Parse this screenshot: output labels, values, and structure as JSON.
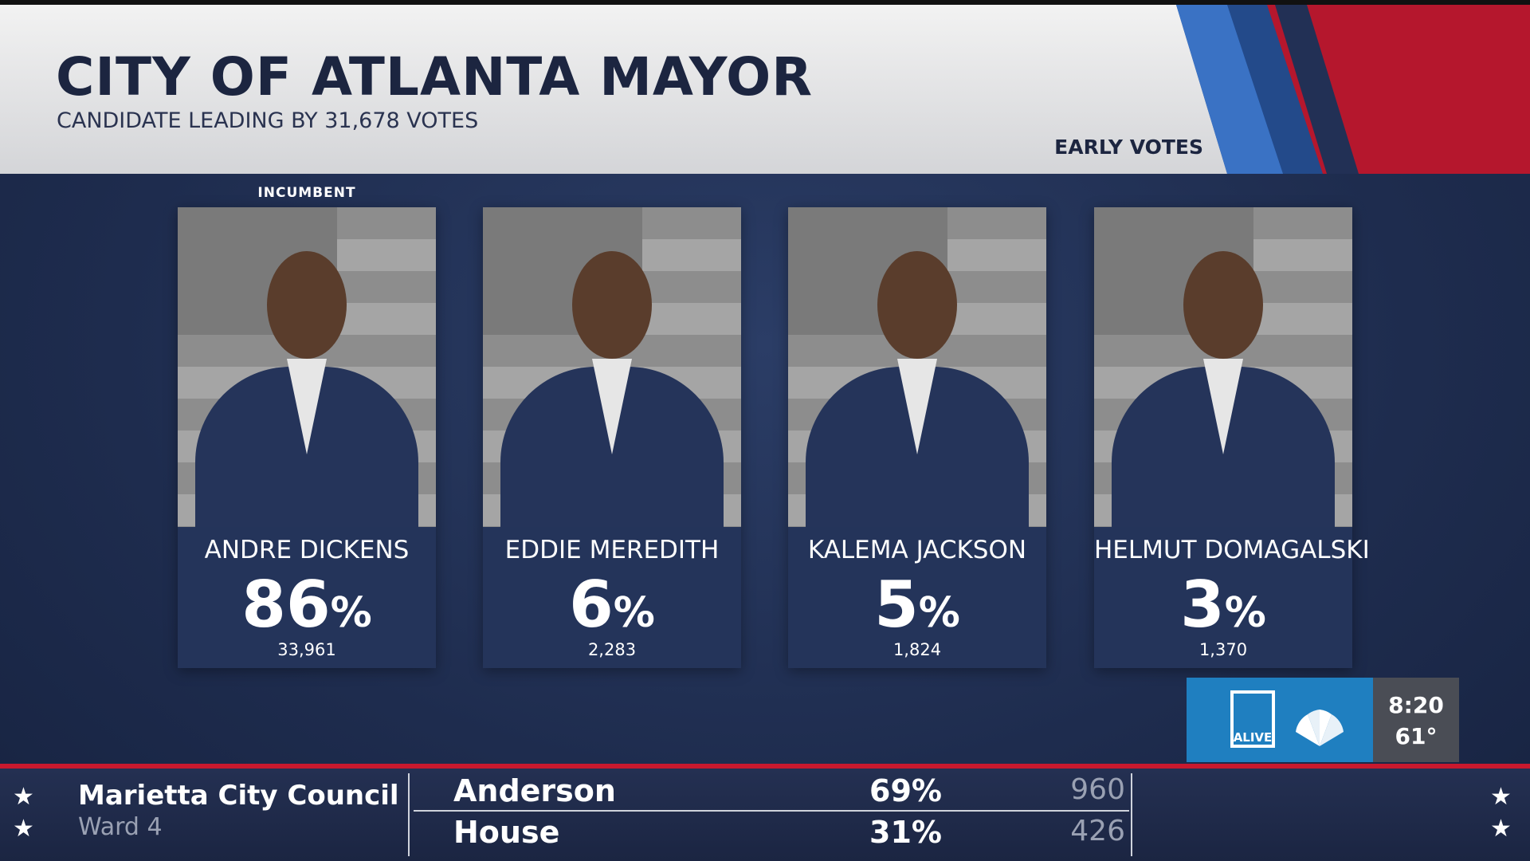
{
  "header": {
    "title": "CITY OF ATLANTA MAYOR",
    "subtitle": "CANDIDATE LEADING BY 31,678 VOTES",
    "badge": "EARLY VOTES"
  },
  "percent_sign": "%",
  "candidates": [
    {
      "tag": "INCUMBENT",
      "name": "ANDRE DICKENS",
      "percent": 86,
      "votes": "33,961"
    },
    {
      "name": "EDDIE MEREDITH",
      "percent": 6,
      "votes": "2,283"
    },
    {
      "name": "KALEMA JACKSON",
      "percent": 5,
      "votes": "1,824"
    },
    {
      "name": "HELMUT DOMAGALSKI",
      "percent": 3,
      "votes": "1,370"
    }
  ],
  "station": {
    "logo": "ALIVE",
    "time": "8:20",
    "temp": "61°"
  },
  "ticker": {
    "race": "Marietta City Council",
    "district": "Ward 4",
    "rows": [
      {
        "name": "Anderson",
        "percent": "69%",
        "votes": "960"
      },
      {
        "name": "House",
        "percent": "31%",
        "votes": "426"
      }
    ]
  }
}
